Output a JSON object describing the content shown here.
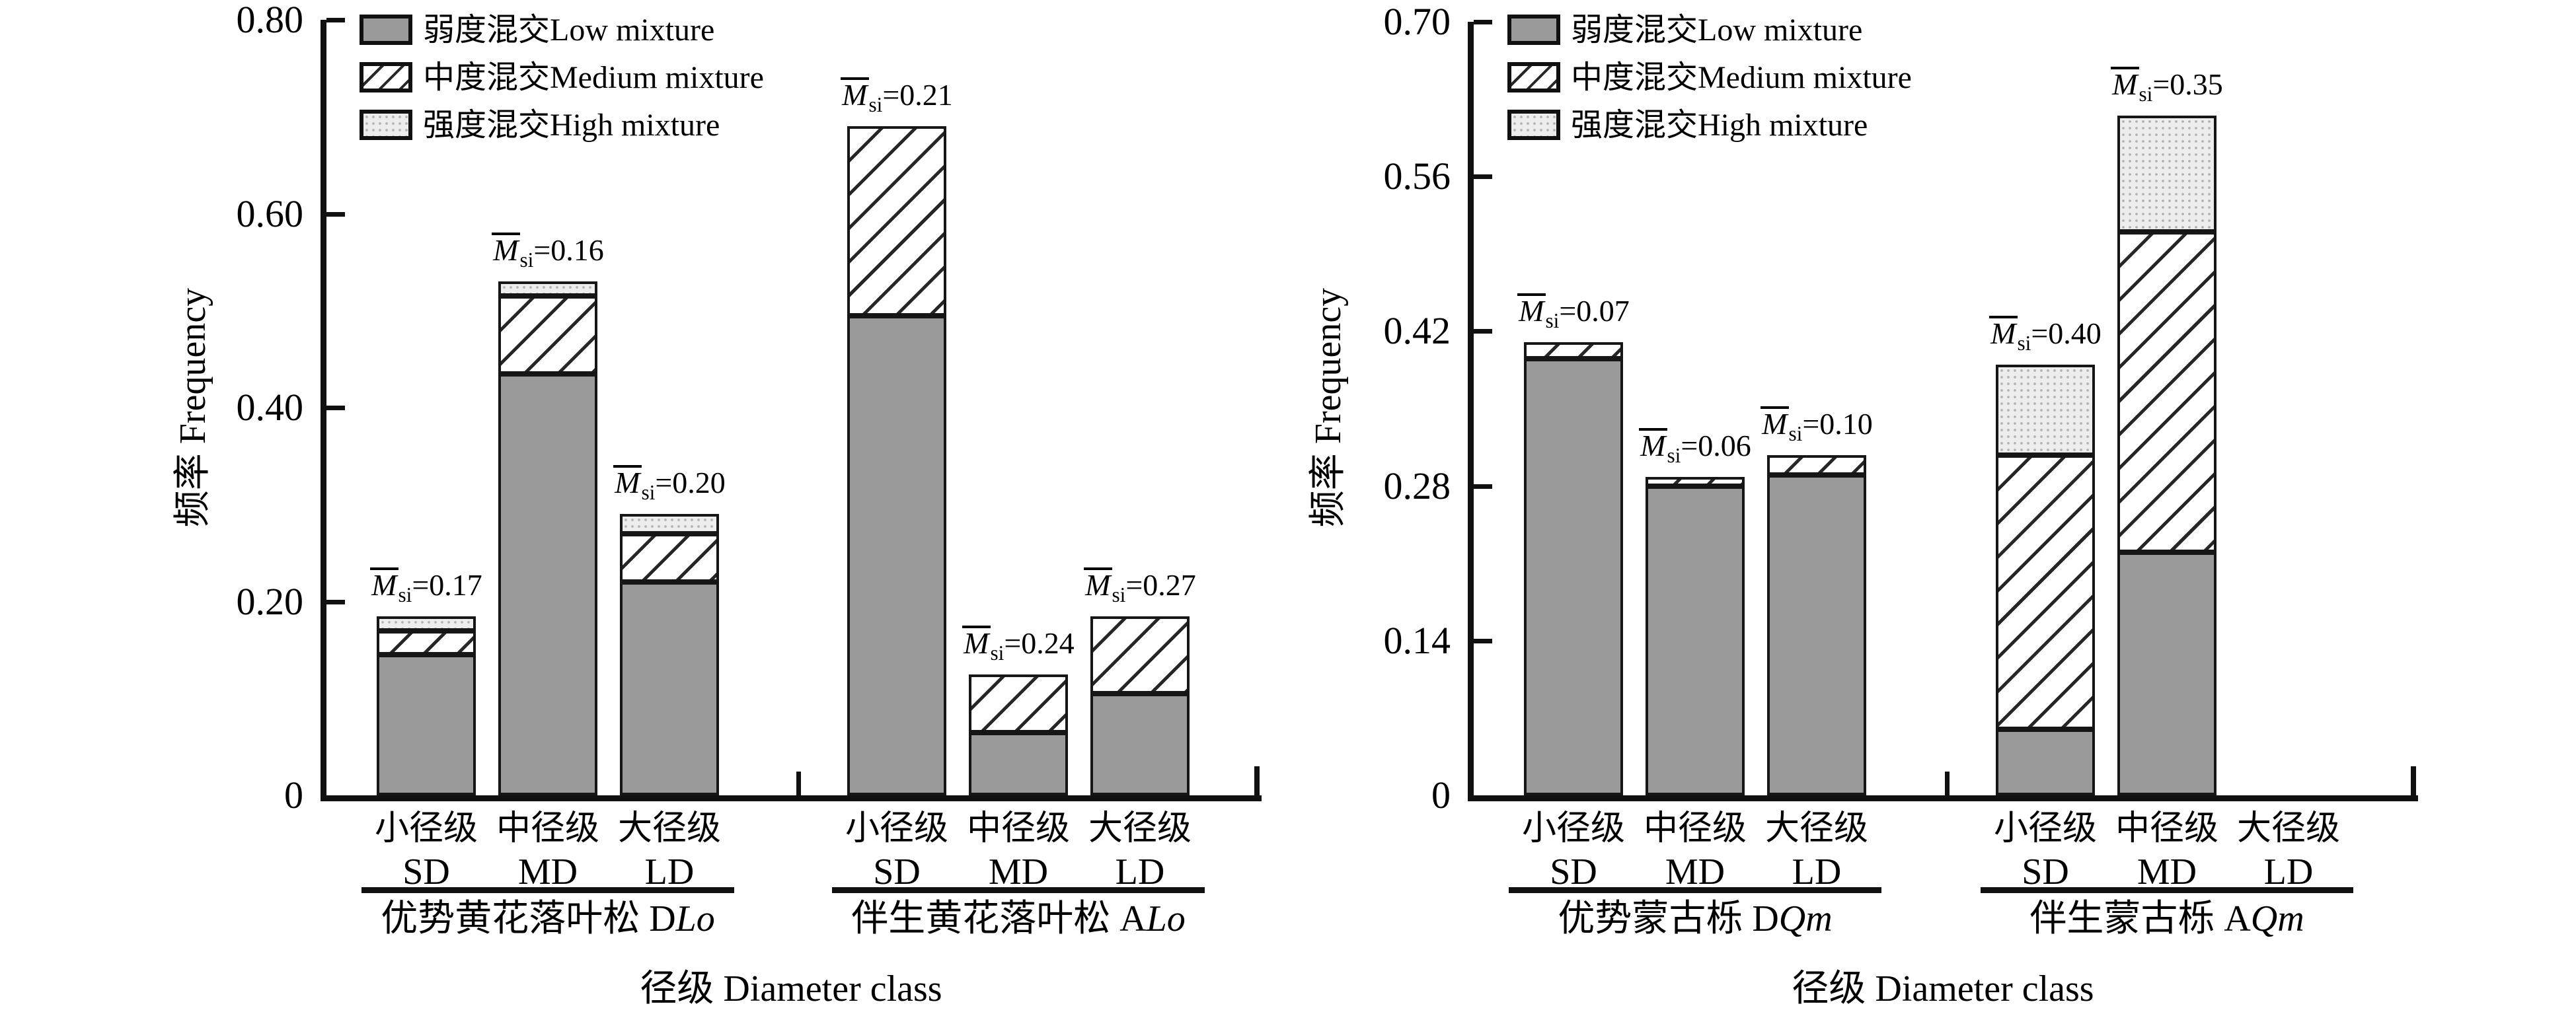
{
  "figure": {
    "background": "#ffffff"
  },
  "colors": {
    "low_fill": "#9a9a9a",
    "hatch_line": "#262626",
    "high_fill": "#ededed",
    "high_dot": "#b5b5b5",
    "axis": "#111111",
    "text": "#000000"
  },
  "legend": {
    "items": [
      {
        "key": "low",
        "label": "弱度混交Low mixture"
      },
      {
        "key": "medium",
        "label": "中度混交Medium mixture"
      },
      {
        "key": "high",
        "label": "强度混交High mixture"
      }
    ]
  },
  "bar_label_symbol": {
    "base": "M",
    "sub": "si",
    "eq": "="
  },
  "chart_data": [
    {
      "type": "bar",
      "stacked": true,
      "ylabel": "频率 Frequency",
      "xlabel": "径级 Diameter class",
      "ylim": [
        0,
        0.8
      ],
      "grid": false,
      "legend_position": "top-left-inside",
      "y_ticks": [
        {
          "v": 0.8,
          "label": "0.80"
        },
        {
          "v": 0.6,
          "label": "0.60"
        },
        {
          "v": 0.4,
          "label": "0.40"
        },
        {
          "v": 0.2,
          "label": "0.20"
        },
        {
          "v": 0.0,
          "label": "0"
        }
      ],
      "series_names": [
        "弱度混交Low mixture",
        "中度混交Medium mixture",
        "强度混交High mixture"
      ],
      "groups": [
        {
          "name_cn": "优势黄花落叶松",
          "code_prefix": "D",
          "code_italic": "Lo",
          "bars": [
            {
              "class_cn": "小径级",
              "class_code": "SD",
              "low": 0.145,
              "medium": 0.025,
              "high": 0.015,
              "msi": "0.17"
            },
            {
              "class_cn": "中径级",
              "class_code": "MD",
              "low": 0.435,
              "medium": 0.08,
              "high": 0.015,
              "msi": "0.16"
            },
            {
              "class_cn": "大径级",
              "class_code": "LD",
              "low": 0.22,
              "medium": 0.05,
              "high": 0.02,
              "msi": "0.20"
            }
          ]
        },
        {
          "name_cn": "伴生黄花落叶松",
          "code_prefix": "A",
          "code_italic": "Lo",
          "bars": [
            {
              "class_cn": "小径级",
              "class_code": "SD",
              "low": 0.495,
              "medium": 0.195,
              "high": 0.0,
              "msi": "0.21"
            },
            {
              "class_cn": "中径级",
              "class_code": "MD",
              "low": 0.065,
              "medium": 0.06,
              "high": 0.0,
              "msi": "0.24"
            },
            {
              "class_cn": "大径级",
              "class_code": "LD",
              "low": 0.105,
              "medium": 0.08,
              "high": 0.0,
              "msi": "0.27"
            }
          ]
        }
      ]
    },
    {
      "type": "bar",
      "stacked": true,
      "ylabel": "频率 Frequency",
      "xlabel": "径级 Diameter class",
      "ylim": [
        0,
        0.7
      ],
      "grid": false,
      "legend_position": "top-left-inside",
      "y_ticks": [
        {
          "v": 0.7,
          "label": "0.70"
        },
        {
          "v": 0.56,
          "label": "0.56"
        },
        {
          "v": 0.42,
          "label": "0.42"
        },
        {
          "v": 0.28,
          "label": "0.28"
        },
        {
          "v": 0.14,
          "label": "0.14"
        },
        {
          "v": 0.0,
          "label": "0"
        }
      ],
      "series_names": [
        "弱度混交Low mixture",
        "中度混交Medium mixture",
        "强度混交High mixture"
      ],
      "groups": [
        {
          "name_cn": "优势蒙古栎",
          "code_prefix": "D",
          "code_italic": "Qm",
          "bars": [
            {
              "class_cn": "小径级",
              "class_code": "SD",
              "low": 0.395,
              "medium": 0.015,
              "high": 0.0,
              "msi": "0.07"
            },
            {
              "class_cn": "中径级",
              "class_code": "MD",
              "low": 0.28,
              "medium": 0.008,
              "high": 0.0,
              "msi": "0.06"
            },
            {
              "class_cn": "大径级",
              "class_code": "LD",
              "low": 0.29,
              "medium": 0.018,
              "high": 0.0,
              "msi": "0.10"
            }
          ]
        },
        {
          "name_cn": "伴生蒙古栎",
          "code_prefix": "A",
          "code_italic": "Qm",
          "bars": [
            {
              "class_cn": "小径级",
              "class_code": "SD",
              "low": 0.06,
              "medium": 0.248,
              "high": 0.082,
              "msi": "0.40"
            },
            {
              "class_cn": "中径级",
              "class_code": "MD",
              "low": 0.22,
              "medium": 0.29,
              "high": 0.105,
              "msi": "0.35"
            },
            {
              "class_cn": "大径级",
              "class_code": "LD",
              "low": 0.0,
              "medium": 0.0,
              "high": 0.0,
              "msi": null
            }
          ]
        }
      ]
    }
  ]
}
